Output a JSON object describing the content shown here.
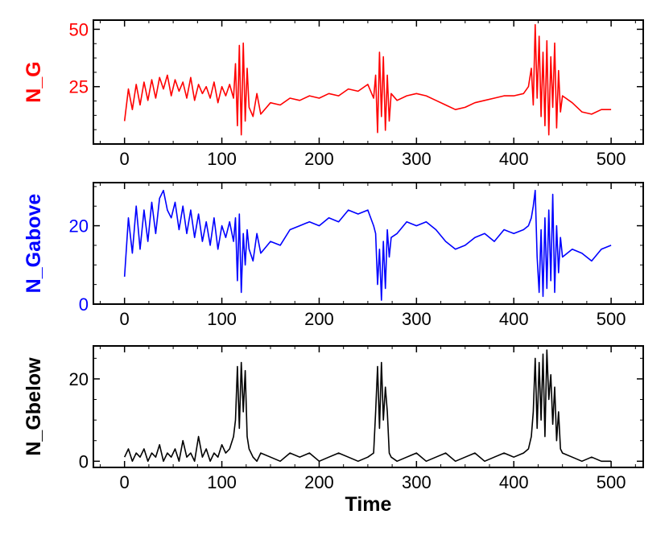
{
  "chart_data": [
    {
      "type": "line",
      "ylabel": "N_G",
      "color": "#ff0000",
      "xlim": [
        -32,
        533
      ],
      "ylim": [
        0,
        54
      ],
      "xticks": [
        0,
        100,
        200,
        300,
        400,
        500
      ],
      "yticks": [
        25,
        50
      ],
      "series": [
        {
          "name": "N_G",
          "x": [
            0,
            4,
            8,
            12,
            16,
            20,
            24,
            28,
            32,
            36,
            40,
            44,
            48,
            52,
            56,
            60,
            64,
            68,
            72,
            76,
            80,
            84,
            88,
            92,
            96,
            100,
            104,
            108,
            112,
            114,
            116,
            118,
            120,
            122,
            124,
            126,
            128,
            132,
            136,
            140,
            150,
            160,
            170,
            180,
            190,
            200,
            210,
            220,
            230,
            240,
            250,
            256,
            258,
            260,
            262,
            264,
            266,
            268,
            270,
            272,
            274,
            280,
            290,
            300,
            310,
            320,
            330,
            340,
            350,
            360,
            370,
            380,
            390,
            400,
            410,
            415,
            418,
            420,
            422,
            424,
            426,
            428,
            430,
            432,
            434,
            436,
            438,
            440,
            442,
            444,
            446,
            448,
            450,
            460,
            470,
            480,
            490,
            500
          ],
          "y": [
            10,
            24,
            15,
            26,
            17,
            27,
            19,
            28,
            20,
            29,
            24,
            30,
            21,
            28,
            23,
            27,
            20,
            29,
            19,
            26,
            22,
            25,
            20,
            27,
            18,
            25,
            21,
            26,
            20,
            35,
            8,
            43,
            4,
            44,
            10,
            33,
            16,
            12,
            22,
            13,
            18,
            17,
            20,
            19,
            21,
            20,
            22,
            21,
            24,
            23,
            26,
            20,
            30,
            5,
            40,
            12,
            38,
            6,
            30,
            10,
            22,
            19,
            21,
            22,
            21,
            19,
            17,
            15,
            16,
            18,
            19,
            20,
            21,
            21,
            22,
            25,
            33,
            17,
            52,
            20,
            47,
            12,
            40,
            8,
            45,
            4,
            38,
            16,
            44,
            7,
            32,
            14,
            21,
            18,
            14,
            13,
            15,
            15
          ]
        }
      ]
    },
    {
      "type": "line",
      "ylabel": "N_Gabove",
      "color": "#0000ff",
      "xlim": [
        -32,
        533
      ],
      "ylim": [
        0,
        31
      ],
      "xticks": [
        0,
        100,
        200,
        300,
        400,
        500
      ],
      "yticks": [
        0,
        20
      ],
      "series": [
        {
          "name": "N_Gabove",
          "x": [
            0,
            4,
            8,
            12,
            16,
            20,
            24,
            28,
            32,
            36,
            40,
            44,
            48,
            52,
            56,
            60,
            64,
            68,
            72,
            76,
            80,
            84,
            88,
            92,
            96,
            100,
            104,
            108,
            112,
            114,
            116,
            118,
            120,
            122,
            124,
            126,
            128,
            132,
            136,
            140,
            150,
            160,
            170,
            180,
            190,
            200,
            210,
            220,
            230,
            240,
            250,
            256,
            258,
            260,
            262,
            264,
            266,
            268,
            270,
            272,
            274,
            280,
            290,
            300,
            310,
            320,
            330,
            340,
            350,
            360,
            370,
            380,
            390,
            400,
            410,
            415,
            418,
            420,
            422,
            424,
            426,
            428,
            430,
            432,
            434,
            436,
            438,
            440,
            442,
            444,
            446,
            448,
            450,
            460,
            470,
            480,
            490,
            500
          ],
          "y": [
            7,
            22,
            13,
            25,
            14,
            24,
            16,
            26,
            18,
            27,
            29,
            24,
            22,
            26,
            19,
            25,
            18,
            24,
            17,
            23,
            16,
            21,
            15,
            22,
            14,
            20,
            17,
            21,
            16,
            22,
            6,
            23,
            3,
            18,
            10,
            19,
            14,
            11,
            18,
            13,
            16,
            15,
            19,
            20,
            21,
            20,
            22,
            21,
            24,
            23,
            24,
            20,
            18,
            5,
            14,
            1,
            16,
            4,
            19,
            12,
            17,
            18,
            21,
            20,
            21,
            19,
            16,
            14,
            15,
            17,
            18,
            16,
            19,
            18,
            19,
            20,
            22,
            25,
            29,
            12,
            3,
            19,
            2,
            22,
            4,
            24,
            6,
            28,
            3,
            20,
            8,
            17,
            12,
            14,
            13,
            11,
            14,
            15
          ]
        }
      ]
    },
    {
      "type": "line",
      "ylabel": "N_Gbelow",
      "xlabel": "Time",
      "color": "#000000",
      "xlim": [
        -32,
        533
      ],
      "ylim": [
        -1.5,
        28
      ],
      "xticks": [
        0,
        100,
        200,
        300,
        400,
        500
      ],
      "yticks": [
        0,
        20
      ],
      "series": [
        {
          "name": "N_Gbelow",
          "x": [
            0,
            4,
            8,
            12,
            16,
            20,
            24,
            28,
            32,
            36,
            40,
            44,
            48,
            52,
            56,
            60,
            64,
            68,
            72,
            76,
            80,
            84,
            88,
            92,
            96,
            100,
            104,
            108,
            112,
            114,
            116,
            118,
            120,
            122,
            124,
            126,
            128,
            132,
            136,
            140,
            150,
            160,
            170,
            180,
            190,
            200,
            210,
            220,
            230,
            240,
            250,
            256,
            258,
            260,
            262,
            264,
            266,
            268,
            270,
            272,
            274,
            280,
            290,
            300,
            310,
            320,
            330,
            340,
            350,
            360,
            370,
            380,
            390,
            400,
            410,
            415,
            418,
            420,
            422,
            424,
            426,
            428,
            430,
            432,
            434,
            436,
            438,
            440,
            442,
            444,
            446,
            448,
            450,
            460,
            470,
            480,
            490,
            500
          ],
          "y": [
            1,
            3,
            0,
            2,
            1,
            3,
            0,
            2,
            1,
            4,
            0,
            2,
            1,
            3,
            0,
            5,
            1,
            2,
            0,
            6,
            1,
            3,
            0,
            2,
            1,
            4,
            2,
            3,
            6,
            10,
            23,
            8,
            24,
            12,
            22,
            6,
            3,
            1,
            0,
            2,
            1,
            0,
            2,
            1,
            2,
            0,
            1,
            2,
            1,
            0,
            1,
            2,
            12,
            23,
            8,
            24,
            10,
            18,
            12,
            2,
            1,
            0,
            1,
            2,
            0,
            1,
            2,
            0,
            1,
            2,
            0,
            1,
            2,
            1,
            2,
            3,
            6,
            12,
            25,
            8,
            24,
            10,
            26,
            6,
            27,
            15,
            21,
            9,
            18,
            5,
            12,
            3,
            2,
            1,
            0,
            1,
            0,
            0
          ]
        }
      ]
    }
  ]
}
